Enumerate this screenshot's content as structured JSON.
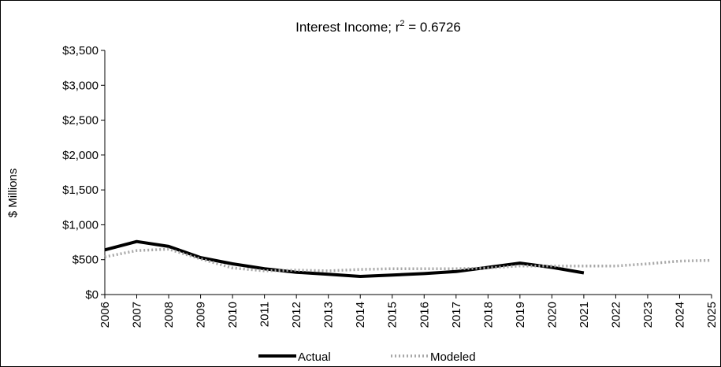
{
  "chart_data": {
    "type": "line",
    "title_main": "Interest Income; r",
    "title_sup": "2",
    "title_tail": " = 0.6726",
    "ylabel": "$ Millions",
    "xlabel": "",
    "ylim": [
      0,
      3500
    ],
    "y_ticks": [
      0,
      500,
      1000,
      1500,
      2000,
      2500,
      3000,
      3500
    ],
    "y_tick_labels": [
      "$0",
      "$500",
      "$1,000",
      "$1,500",
      "$2,000",
      "$2,500",
      "$3,000",
      "$3,500"
    ],
    "categories": [
      "2006",
      "2007",
      "2008",
      "2009",
      "2010",
      "2011",
      "2012",
      "2013",
      "2014",
      "2015",
      "2016",
      "2017",
      "2018",
      "2019",
      "2020",
      "2021",
      "2022",
      "2023",
      "2024",
      "2025"
    ],
    "grid": false,
    "legend_position": "bottom",
    "series": [
      {
        "name": "Actual",
        "color": "#000000",
        "style": "solid",
        "values": [
          640,
          760,
          690,
          530,
          440,
          370,
          320,
          290,
          260,
          280,
          300,
          330,
          390,
          450,
          390,
          310,
          null,
          null,
          null,
          null
        ]
      },
      {
        "name": "Modeled",
        "color": "#a6a6a6",
        "style": "dotted",
        "values": [
          540,
          630,
          650,
          510,
          380,
          340,
          350,
          340,
          360,
          370,
          370,
          370,
          380,
          410,
          410,
          410,
          410,
          440,
          480,
          490
        ]
      }
    ]
  }
}
